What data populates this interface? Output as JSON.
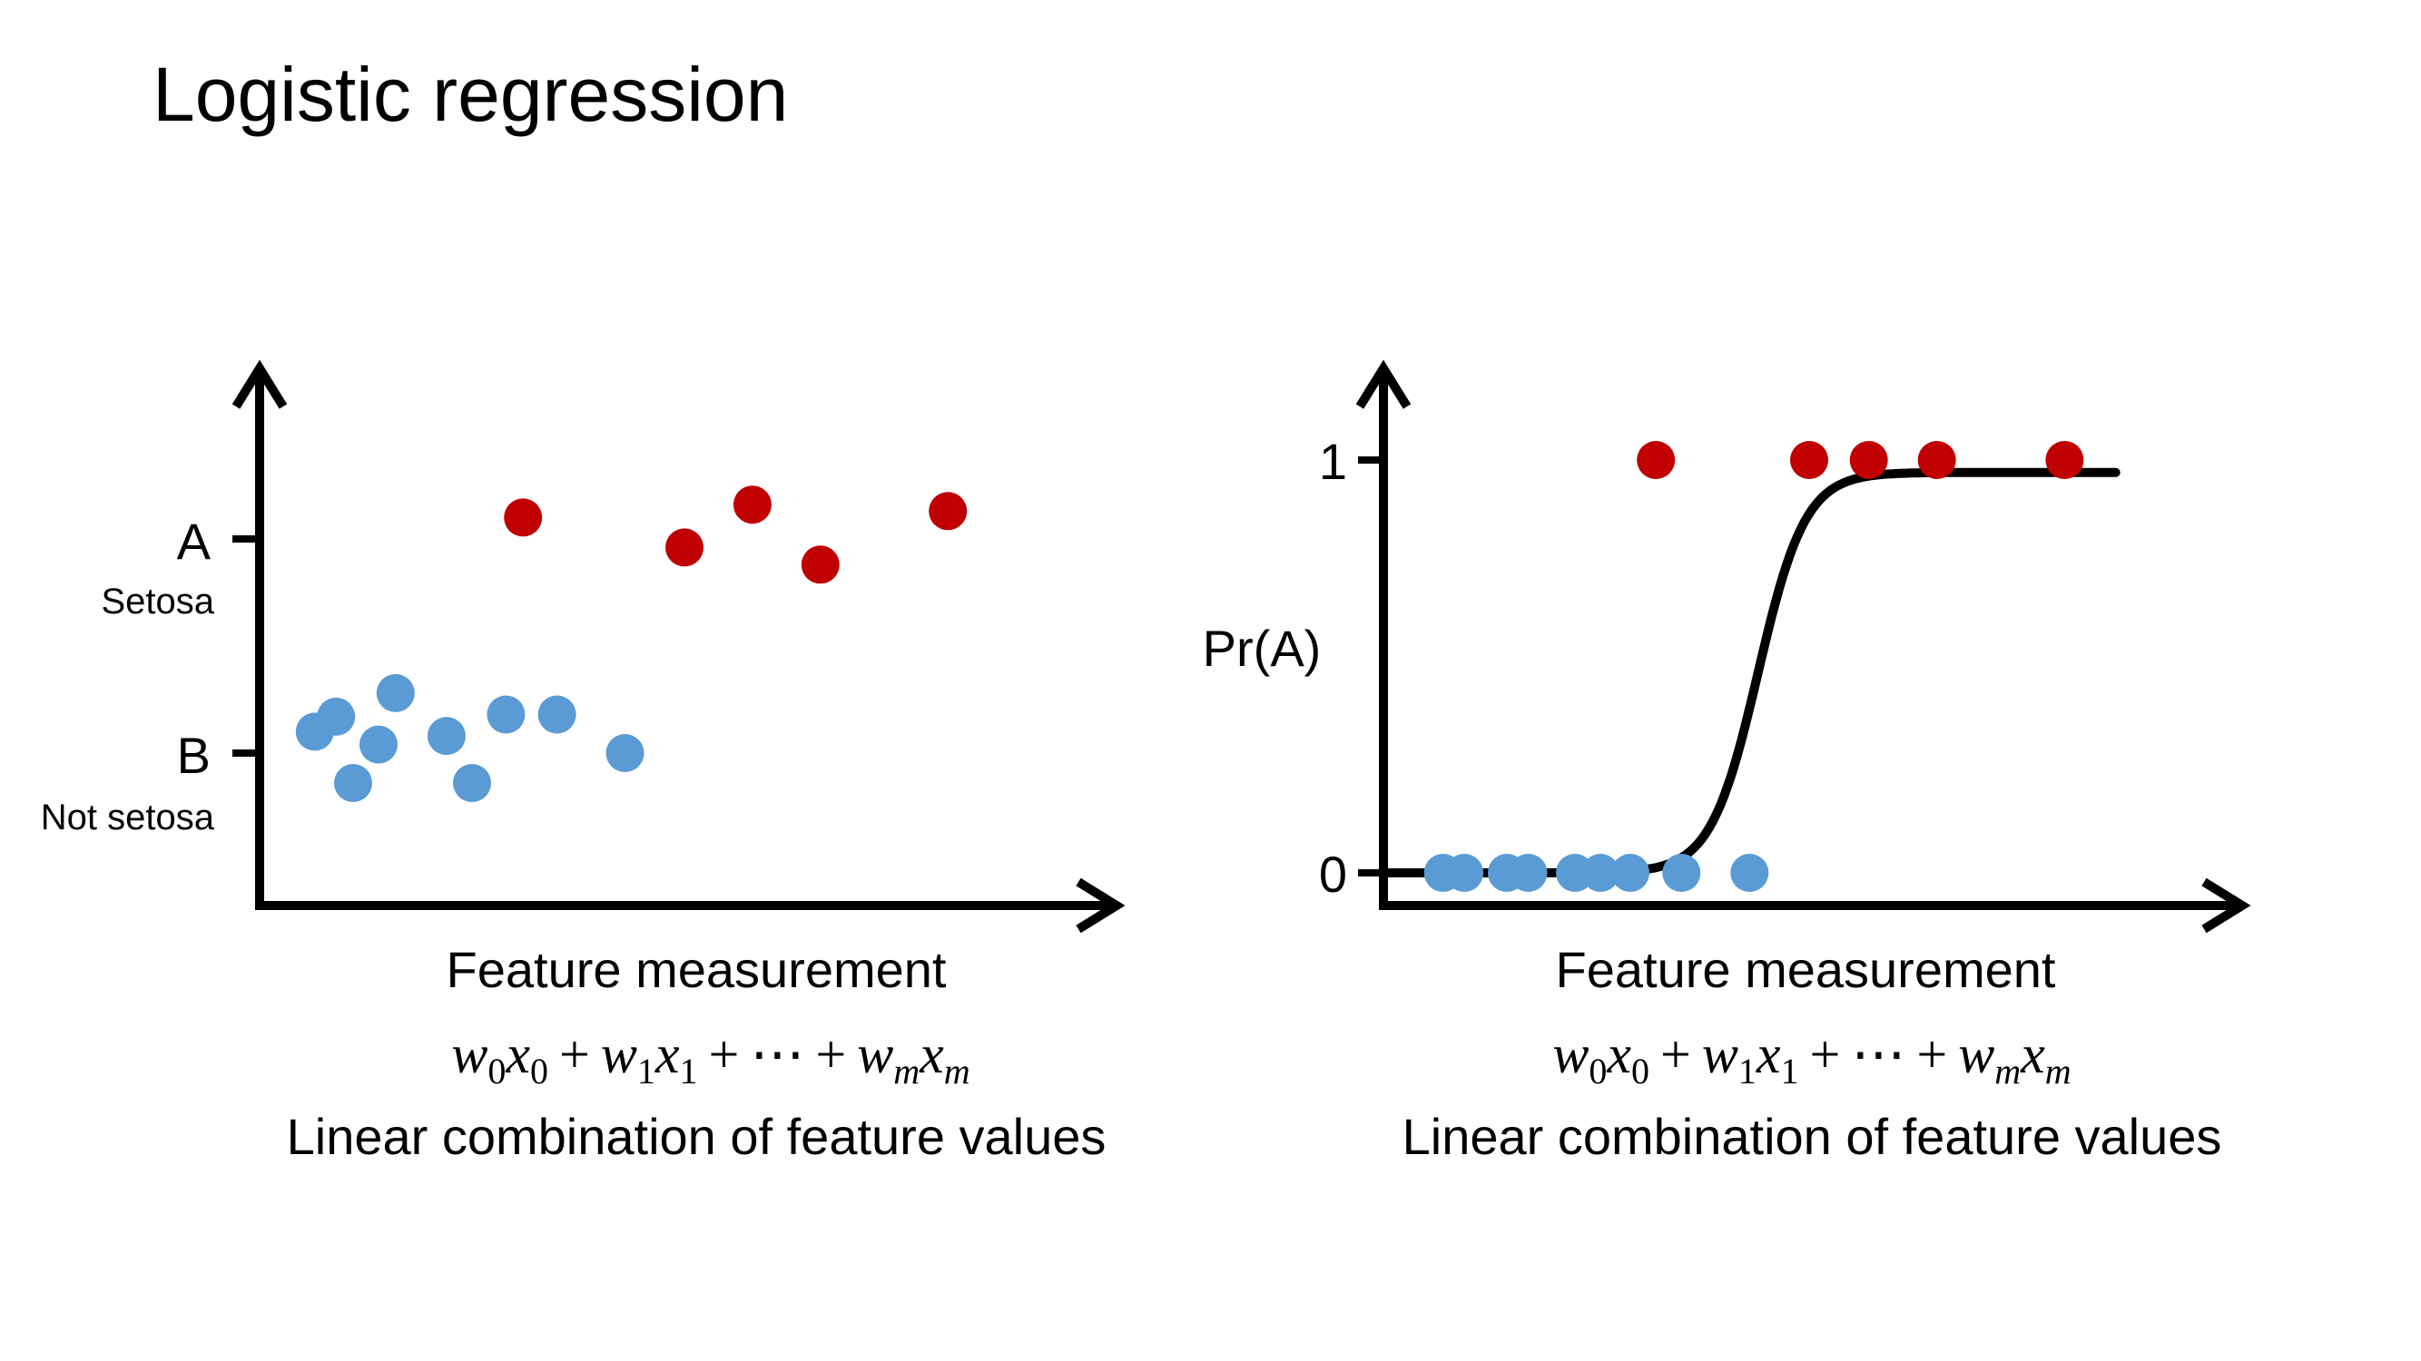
{
  "title": "Logistic regression",
  "colors": {
    "class_a": "#c00000",
    "class_b": "#5b9bd5",
    "axis": "#000000"
  },
  "chart_data": [
    {
      "type": "scatter",
      "panel": "left",
      "y_ticks": [
        {
          "label": "A",
          "sublabel": "Setosa"
        },
        {
          "label": "B",
          "sublabel": "Not setosa"
        }
      ],
      "xlabel": "Feature measurement",
      "formula": {
        "w": "w",
        "x": "x",
        "plus": "+",
        "ellipsis": "⋯",
        "sub0": "0",
        "sub1": "1",
        "subm": "m"
      },
      "caption": "Linear combination of feature values",
      "series": [
        {
          "name": "A",
          "class": "A",
          "color": "#c00000",
          "points": [
            {
              "x": 0.31,
              "y": 1.1
            },
            {
              "x": 0.5,
              "y": 0.96
            },
            {
              "x": 0.58,
              "y": 1.16
            },
            {
              "x": 0.66,
              "y": 0.88
            },
            {
              "x": 0.81,
              "y": 1.13
            }
          ]
        },
        {
          "name": "B",
          "class": "B",
          "color": "#5b9bd5",
          "points": [
            {
              "x": 0.065,
              "y": 0.1
            },
            {
              "x": 0.09,
              "y": 0.17
            },
            {
              "x": 0.11,
              "y": -0.14
            },
            {
              "x": 0.14,
              "y": 0.04
            },
            {
              "x": 0.16,
              "y": 0.28
            },
            {
              "x": 0.22,
              "y": 0.08
            },
            {
              "x": 0.25,
              "y": -0.14
            },
            {
              "x": 0.29,
              "y": 0.18
            },
            {
              "x": 0.35,
              "y": 0.18
            },
            {
              "x": 0.43,
              "y": 0.0
            }
          ]
        }
      ]
    },
    {
      "type": "scatter",
      "panel": "right",
      "ylabel": "Pr(A)",
      "y_ticks": [
        1,
        0
      ],
      "xlabel": "Feature measurement",
      "formula": {
        "w": "w",
        "x": "x",
        "plus": "+",
        "ellipsis": "⋯",
        "sub0": "0",
        "sub1": "1",
        "subm": "m"
      },
      "caption": "Linear combination of feature values",
      "curve": {
        "type": "sigmoid",
        "midpoint": 0.44,
        "steepness": 36,
        "y_max": 0.97
      },
      "series": [
        {
          "name": "A",
          "class": "A",
          "color": "#c00000",
          "points": [
            {
              "x": 0.32,
              "y": 1
            },
            {
              "x": 0.5,
              "y": 1
            },
            {
              "x": 0.57,
              "y": 1
            },
            {
              "x": 0.65,
              "y": 1
            },
            {
              "x": 0.8,
              "y": 1
            }
          ]
        },
        {
          "name": "B",
          "class": "B",
          "color": "#5b9bd5",
          "points": [
            {
              "x": 0.07,
              "y": 0
            },
            {
              "x": 0.095,
              "y": 0
            },
            {
              "x": 0.145,
              "y": 0
            },
            {
              "x": 0.17,
              "y": 0
            },
            {
              "x": 0.225,
              "y": 0
            },
            {
              "x": 0.255,
              "y": 0
            },
            {
              "x": 0.29,
              "y": 0
            },
            {
              "x": 0.35,
              "y": 0
            },
            {
              "x": 0.43,
              "y": 0
            }
          ]
        }
      ]
    }
  ]
}
